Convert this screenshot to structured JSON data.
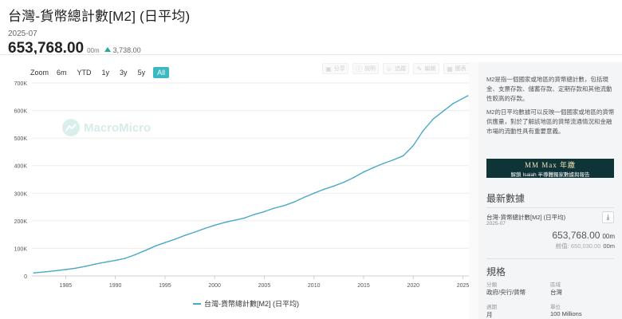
{
  "header": {
    "title": "台灣-貨幣總計數[M2] (日平均)",
    "date": "2025-07",
    "value": "653,768.00",
    "unit": "00m",
    "change": "3,738.00"
  },
  "zoom": {
    "label": "Zoom",
    "options": [
      "6m",
      "YTD",
      "1y",
      "3y",
      "5y",
      "All"
    ],
    "active": "All"
  },
  "toolbar": {
    "buttons": [
      {
        "icon": "image-icon",
        "label": "分享"
      },
      {
        "icon": "info-icon",
        "label": "說明"
      },
      {
        "icon": "user-icon",
        "label": "追蹤"
      },
      {
        "icon": "edit-icon",
        "label": "編輯"
      },
      {
        "icon": "grid-icon",
        "label": "圖表"
      }
    ]
  },
  "watermark": "MacroMicro",
  "chart_data": {
    "type": "line",
    "title": "",
    "xlabel": "",
    "ylabel": "",
    "xlim": [
      1981.6,
      2025.6
    ],
    "ylim": [
      0,
      700000
    ],
    "x_ticks": [
      "1985",
      "1990",
      "1995",
      "2000",
      "2005",
      "2010",
      "2015",
      "2020",
      "2025"
    ],
    "y_ticks": [
      "0",
      "100K",
      "200K",
      "300K",
      "400K",
      "500K",
      "600K",
      "700K"
    ],
    "grid": true,
    "legend": "bottom-center",
    "series": [
      {
        "name": "台灣-貨幣總計數[M2] (日平均)",
        "color": "#49a9c7",
        "x": [
          1981.8,
          1983,
          1984,
          1985,
          1986,
          1987,
          1988,
          1989,
          1990,
          1991,
          1992,
          1993,
          1994,
          1995,
          1996,
          1997,
          1998,
          1999,
          2000,
          2001,
          2002,
          2003,
          2004,
          2005,
          2006,
          2007,
          2008,
          2009,
          2010,
          2011,
          2012,
          2013,
          2014,
          2015,
          2016,
          2017,
          2018,
          2019,
          2020,
          2021,
          2022,
          2023,
          2024,
          2025.5
        ],
        "y": [
          11000,
          15000,
          19000,
          23000,
          28000,
          35000,
          43000,
          50000,
          56000,
          64000,
          77000,
          92000,
          108000,
          121000,
          133000,
          147000,
          159000,
          172000,
          184000,
          194000,
          202000,
          210000,
          223000,
          233000,
          246000,
          255000,
          268000,
          285000,
          300000,
          314000,
          326000,
          340000,
          357000,
          377000,
          393000,
          408000,
          421000,
          436000,
          473000,
          527000,
          569000,
          597000,
          625000,
          653768
        ]
      }
    ]
  },
  "panel": {
    "desc1": "M2是指一個國家或地區的貨幣總計數，包括現金、支票存款、儲蓄存款、定期存款和其他流動性較高的存款。",
    "desc2": "M2的日平均數據可以反映一個國家或地區的貨幣供應量，對於了解該地區的貨幣流通情況和金融市場的流動性具有重要意義。",
    "banner_line1": "MM Max 年繳",
    "banner_line2": "解鎖 Isaiah 半導體獨家數據與報告",
    "latest_title": "最新數據",
    "latest_name": "台灣-貨幣總計數[M2] (日平均)",
    "latest_date": "2025-07",
    "latest_value": "653,768.00",
    "latest_unit": "00m",
    "prev_label": "前值:",
    "prev_value": "650,030.00",
    "prev_unit": "00m",
    "spec_title": "規格",
    "category_label": "分類",
    "category_value": "政府/央行/貨幣",
    "region_label": "區域",
    "region_value": "台灣",
    "period_label": "週期",
    "period_value": "月",
    "unit_label": "單位",
    "unit_value": "100 Millions"
  }
}
